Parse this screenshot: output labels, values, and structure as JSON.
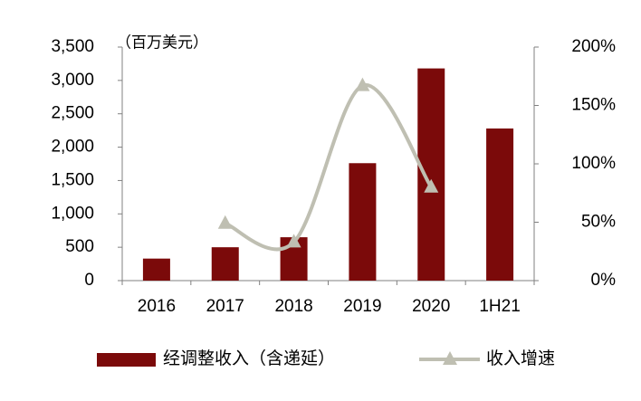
{
  "chart_data": {
    "type": "bar_line",
    "unit_label": "（百万美元）",
    "categories": [
      "2016",
      "2017",
      "2018",
      "2019",
      "2020",
      "1H21"
    ],
    "series": [
      {
        "name": "经调整收入（含递延）",
        "type": "bar",
        "color": "#7b0a0a",
        "values": [
          330,
          500,
          650,
          1760,
          3180,
          2280
        ]
      },
      {
        "name": "收入增速",
        "type": "line",
        "axis": "y2",
        "color": "#bfbfb2",
        "values": [
          null,
          49,
          33,
          167,
          80,
          null
        ]
      }
    ],
    "ylim": [
      0,
      3500
    ],
    "yticks": [
      0,
      500,
      {
        "value": 1000,
        "label": "1,000"
      },
      {
        "value": 1500,
        "label": "1,500"
      },
      {
        "value": 2000,
        "label": "2,000"
      },
      {
        "value": 2500,
        "label": "2,500"
      },
      {
        "value": 3000,
        "label": "3,000"
      },
      {
        "value": 3500,
        "label": "3,500"
      }
    ],
    "y2lim": [
      0,
      200
    ],
    "y2ticks": [
      {
        "value": 0,
        "label": "0%"
      },
      {
        "value": 50,
        "label": "50%"
      },
      {
        "value": 100,
        "label": "100%"
      },
      {
        "value": 150,
        "label": "150%"
      },
      {
        "value": 200,
        "label": "200%"
      }
    ],
    "grid": false
  }
}
